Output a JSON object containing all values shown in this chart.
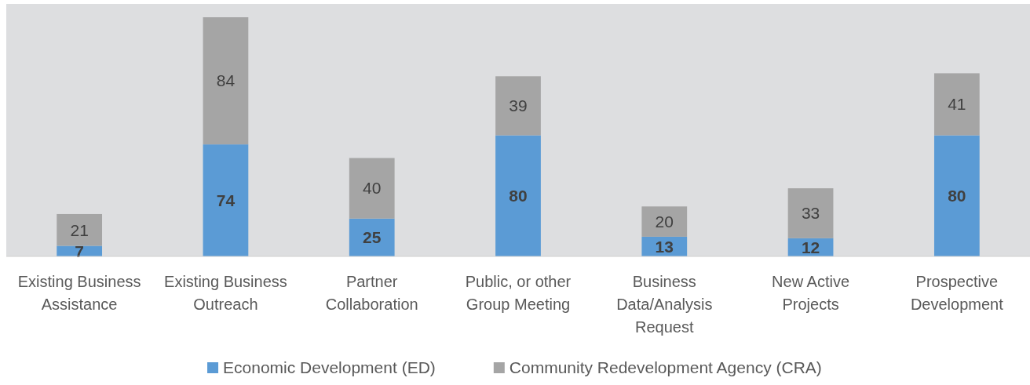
{
  "chart_data": {
    "type": "bar",
    "stacked": true,
    "data_labels": true,
    "legend": "bottom",
    "grid": false,
    "categories": [
      "Existing Business Assistance",
      "Existing Business Outreach",
      "Partner Collaboration",
      "Public, or other Group Meeting",
      "Business Data/Analysis Request",
      "New Active Projects",
      "Prospective Development"
    ],
    "series": [
      {
        "name": "Economic Development (ED)",
        "color": "#5b9bd5",
        "values": [
          7,
          74,
          25,
          80,
          13,
          12,
          80
        ]
      },
      {
        "name": "Community Redevelopment Agency (CRA)",
        "color": "#a5a5a5",
        "values": [
          21,
          84,
          40,
          39,
          20,
          33,
          41
        ]
      }
    ]
  }
}
